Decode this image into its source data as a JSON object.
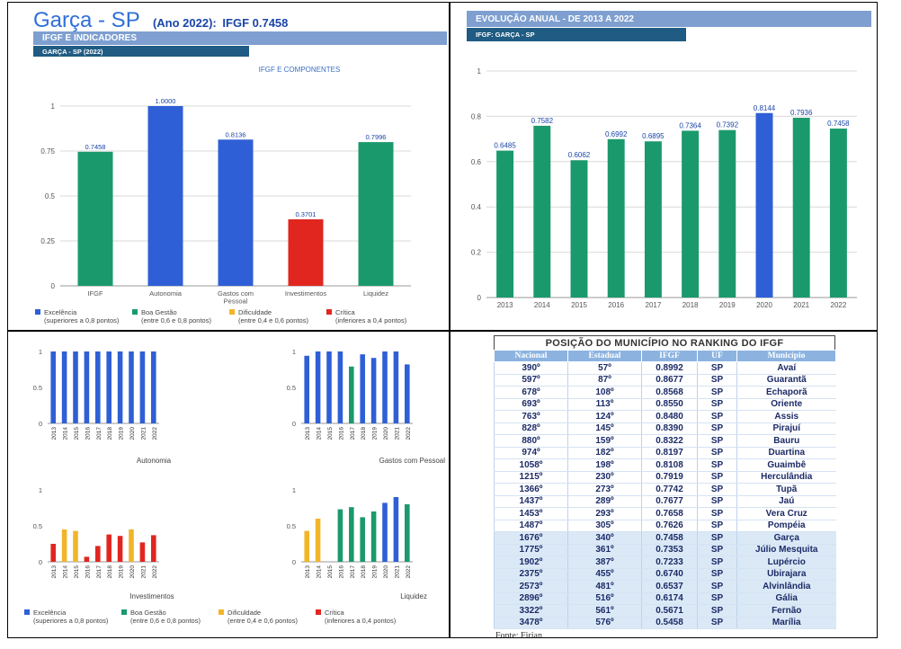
{
  "header": {
    "city": "Garça - SP",
    "year_label": "(Ano 2022):",
    "ifgf_label": "IFGF  0.7458",
    "band_title": "IFGF E INDICADORES",
    "band_subtitle": "GARÇA - SP (2022)"
  },
  "evolution_panel": {
    "band_title": "EVOLUÇÃO ANUAL - DE 2013 A 2022",
    "band_subtitle": "IFGF: GARÇA - SP"
  },
  "colors": {
    "excelencia": "#2e5fd6",
    "boa_gestao": "#1a9a6c",
    "dificuldade": "#f2b52a",
    "critica": "#e0261f",
    "band_light": "#7e9fd0",
    "band_dark": "#1f5b82"
  },
  "legend": [
    {
      "label": "Excelência",
      "sub": "(superiores a 0,8 pontos)",
      "color": "#2e5fd6"
    },
    {
      "label": "Boa Gestão",
      "sub": "(entre 0,6 e 0,8 pontos)",
      "color": "#1a9a6c"
    },
    {
      "label": "Dificuldade",
      "sub": "(entre 0,4 e 0,6 pontos)",
      "color": "#f2b52a"
    },
    {
      "label": "Crítica",
      "sub": "(inferiores a 0,4 pontos)",
      "color": "#e0261f"
    }
  ],
  "chart_data": [
    {
      "id": "components",
      "type": "bar",
      "title": "IFGF E COMPONENTES",
      "categories": [
        "IFGF",
        "Autonomia",
        "Gastos com Pessoal",
        "Investimentos",
        "Liquidez"
      ],
      "values": [
        0.7458,
        1.0,
        0.8136,
        0.3701,
        0.7996
      ],
      "value_labels": [
        "0.7458",
        "1.0000",
        "0.8136",
        "0.3701",
        "0.7996"
      ],
      "colors": [
        "#1a9a6c",
        "#2e5fd6",
        "#2e5fd6",
        "#e0261f",
        "#1a9a6c"
      ],
      "yticks": [
        "0",
        "0.25",
        "0.5",
        "0.75",
        "1"
      ],
      "ylim": [
        0,
        1
      ],
      "grid": true
    },
    {
      "id": "annual",
      "type": "bar",
      "categories": [
        "2013",
        "2014",
        "2015",
        "2016",
        "2017",
        "2018",
        "2019",
        "2020",
        "2021",
        "2022"
      ],
      "values": [
        0.6485,
        0.7582,
        0.6062,
        0.6992,
        0.6895,
        0.7364,
        0.7392,
        0.8144,
        0.7936,
        0.7458
      ],
      "value_labels": [
        "0.6485",
        "0.7582",
        "0.6062",
        "0.6992",
        "0.6895",
        "0.7364",
        "0.7392",
        "0.8144",
        "0.7936",
        "0.7458"
      ],
      "colors": [
        "#1a9a6c",
        "#1a9a6c",
        "#1a9a6c",
        "#1a9a6c",
        "#1a9a6c",
        "#1a9a6c",
        "#1a9a6c",
        "#2e5fd6",
        "#1a9a6c",
        "#1a9a6c"
      ],
      "yticks": [
        "0",
        "0.2",
        "0.4",
        "0.6",
        "0.8",
        "1"
      ],
      "ylim": [
        0,
        1
      ],
      "grid": true
    },
    {
      "id": "autonomia",
      "type": "bar",
      "title": "Autonomia",
      "categories": [
        "2013",
        "2014",
        "2015",
        "2016",
        "2017",
        "2018",
        "2019",
        "2020",
        "2021",
        "2022"
      ],
      "values": [
        1,
        1,
        1,
        1,
        1,
        1,
        1,
        1,
        1,
        1
      ],
      "colors": [
        "#2e5fd6",
        "#2e5fd6",
        "#2e5fd6",
        "#2e5fd6",
        "#2e5fd6",
        "#2e5fd6",
        "#2e5fd6",
        "#2e5fd6",
        "#2e5fd6",
        "#2e5fd6"
      ],
      "yticks": [
        "0",
        "0.5",
        "1"
      ],
      "ylim": [
        0,
        1
      ]
    },
    {
      "id": "gastos",
      "type": "bar",
      "title": "Gastos com Pessoal",
      "categories": [
        "2013",
        "2014",
        "2015",
        "2016",
        "2017",
        "2018",
        "2019",
        "2020",
        "2021",
        "2022"
      ],
      "values": [
        0.94,
        1.0,
        1.0,
        1.0,
        0.79,
        0.96,
        0.91,
        1.0,
        1.0,
        0.82
      ],
      "colors": [
        "#2e5fd6",
        "#2e5fd6",
        "#2e5fd6",
        "#2e5fd6",
        "#1a9a6c",
        "#2e5fd6",
        "#2e5fd6",
        "#2e5fd6",
        "#2e5fd6",
        "#2e5fd6"
      ],
      "yticks": [
        "0",
        "0.5",
        "1"
      ],
      "ylim": [
        0,
        1
      ]
    },
    {
      "id": "investimentos",
      "type": "bar",
      "title": "Investimentos",
      "categories": [
        "2013",
        "2014",
        "2015",
        "2016",
        "2017",
        "2018",
        "2019",
        "2020",
        "2021",
        "2022"
      ],
      "values": [
        0.25,
        0.45,
        0.43,
        0.07,
        0.22,
        0.38,
        0.36,
        0.45,
        0.27,
        0.37
      ],
      "colors": [
        "#e0261f",
        "#f2b52a",
        "#f2b52a",
        "#e0261f",
        "#e0261f",
        "#e0261f",
        "#e0261f",
        "#f2b52a",
        "#e0261f",
        "#e0261f"
      ],
      "yticks": [
        "0",
        "0.5",
        "1"
      ],
      "ylim": [
        0,
        1
      ]
    },
    {
      "id": "liquidez",
      "type": "bar",
      "title": "Liquidez",
      "categories": [
        "2013",
        "2014",
        "2015",
        "2016",
        "2017",
        "2018",
        "2019",
        "2020",
        "2021",
        "2022"
      ],
      "values": [
        0.43,
        0.6,
        0,
        0.73,
        0.76,
        0.62,
        0.7,
        0.82,
        0.9,
        0.8
      ],
      "colors": [
        "#f2b52a",
        "#f2b52a",
        "#f2b52a",
        "#1a9a6c",
        "#1a9a6c",
        "#1a9a6c",
        "#1a9a6c",
        "#2e5fd6",
        "#2e5fd6",
        "#1a9a6c"
      ],
      "yticks": [
        "0",
        "0.5",
        "1"
      ],
      "ylim": [
        0,
        1
      ]
    }
  ],
  "ranking": {
    "title": "POSIÇÃO DO MUNICÍPIO NO RANKING DO IFGF",
    "columns": [
      "Nacional",
      "Estadual",
      "IFGF",
      "UF",
      "Município"
    ],
    "rows": [
      [
        "390º",
        "57º",
        "0.8992",
        "SP",
        "Avaí"
      ],
      [
        "597º",
        "87º",
        "0.8677",
        "SP",
        "Guarantã"
      ],
      [
        "678º",
        "108º",
        "0.8568",
        "SP",
        "Echaporã"
      ],
      [
        "693º",
        "113º",
        "0.8550",
        "SP",
        "Oriente"
      ],
      [
        "763º",
        "124º",
        "0.8480",
        "SP",
        "Assis"
      ],
      [
        "828º",
        "145º",
        "0.8390",
        "SP",
        "Pirajuí"
      ],
      [
        "880º",
        "159º",
        "0.8322",
        "SP",
        "Bauru"
      ],
      [
        "974º",
        "182º",
        "0.8197",
        "SP",
        "Duartina"
      ],
      [
        "1058º",
        "198º",
        "0.8108",
        "SP",
        "Guaimbê"
      ],
      [
        "1215º",
        "230º",
        "0.7919",
        "SP",
        "Herculândia"
      ],
      [
        "1366º",
        "273º",
        "0.7742",
        "SP",
        "Tupã"
      ],
      [
        "1437º",
        "289º",
        "0.7677",
        "SP",
        "Jaú"
      ],
      [
        "1453º",
        "293º",
        "0.7658",
        "SP",
        "Vera Cruz"
      ],
      [
        "1487º",
        "305º",
        "0.7626",
        "SP",
        "Pompéia"
      ],
      [
        "1676º",
        "340º",
        "0.7458",
        "SP",
        "Garça"
      ],
      [
        "1775º",
        "361º",
        "0.7353",
        "SP",
        "Júlio Mesquita"
      ],
      [
        "1902º",
        "387º",
        "0.7233",
        "SP",
        "Lupércio"
      ],
      [
        "2375º",
        "455º",
        "0.6740",
        "SP",
        "Ubirajara"
      ],
      [
        "2573º",
        "481º",
        "0.6537",
        "SP",
        "Alvinlândia"
      ],
      [
        "2896º",
        "516º",
        "0.6174",
        "SP",
        "Gália"
      ],
      [
        "3322º",
        "561º",
        "0.5671",
        "SP",
        "Fernão"
      ],
      [
        "3478º",
        "576º",
        "0.5458",
        "SP",
        "Marília"
      ]
    ],
    "highlight_from": 14,
    "source": "Fonte: Firjan"
  }
}
